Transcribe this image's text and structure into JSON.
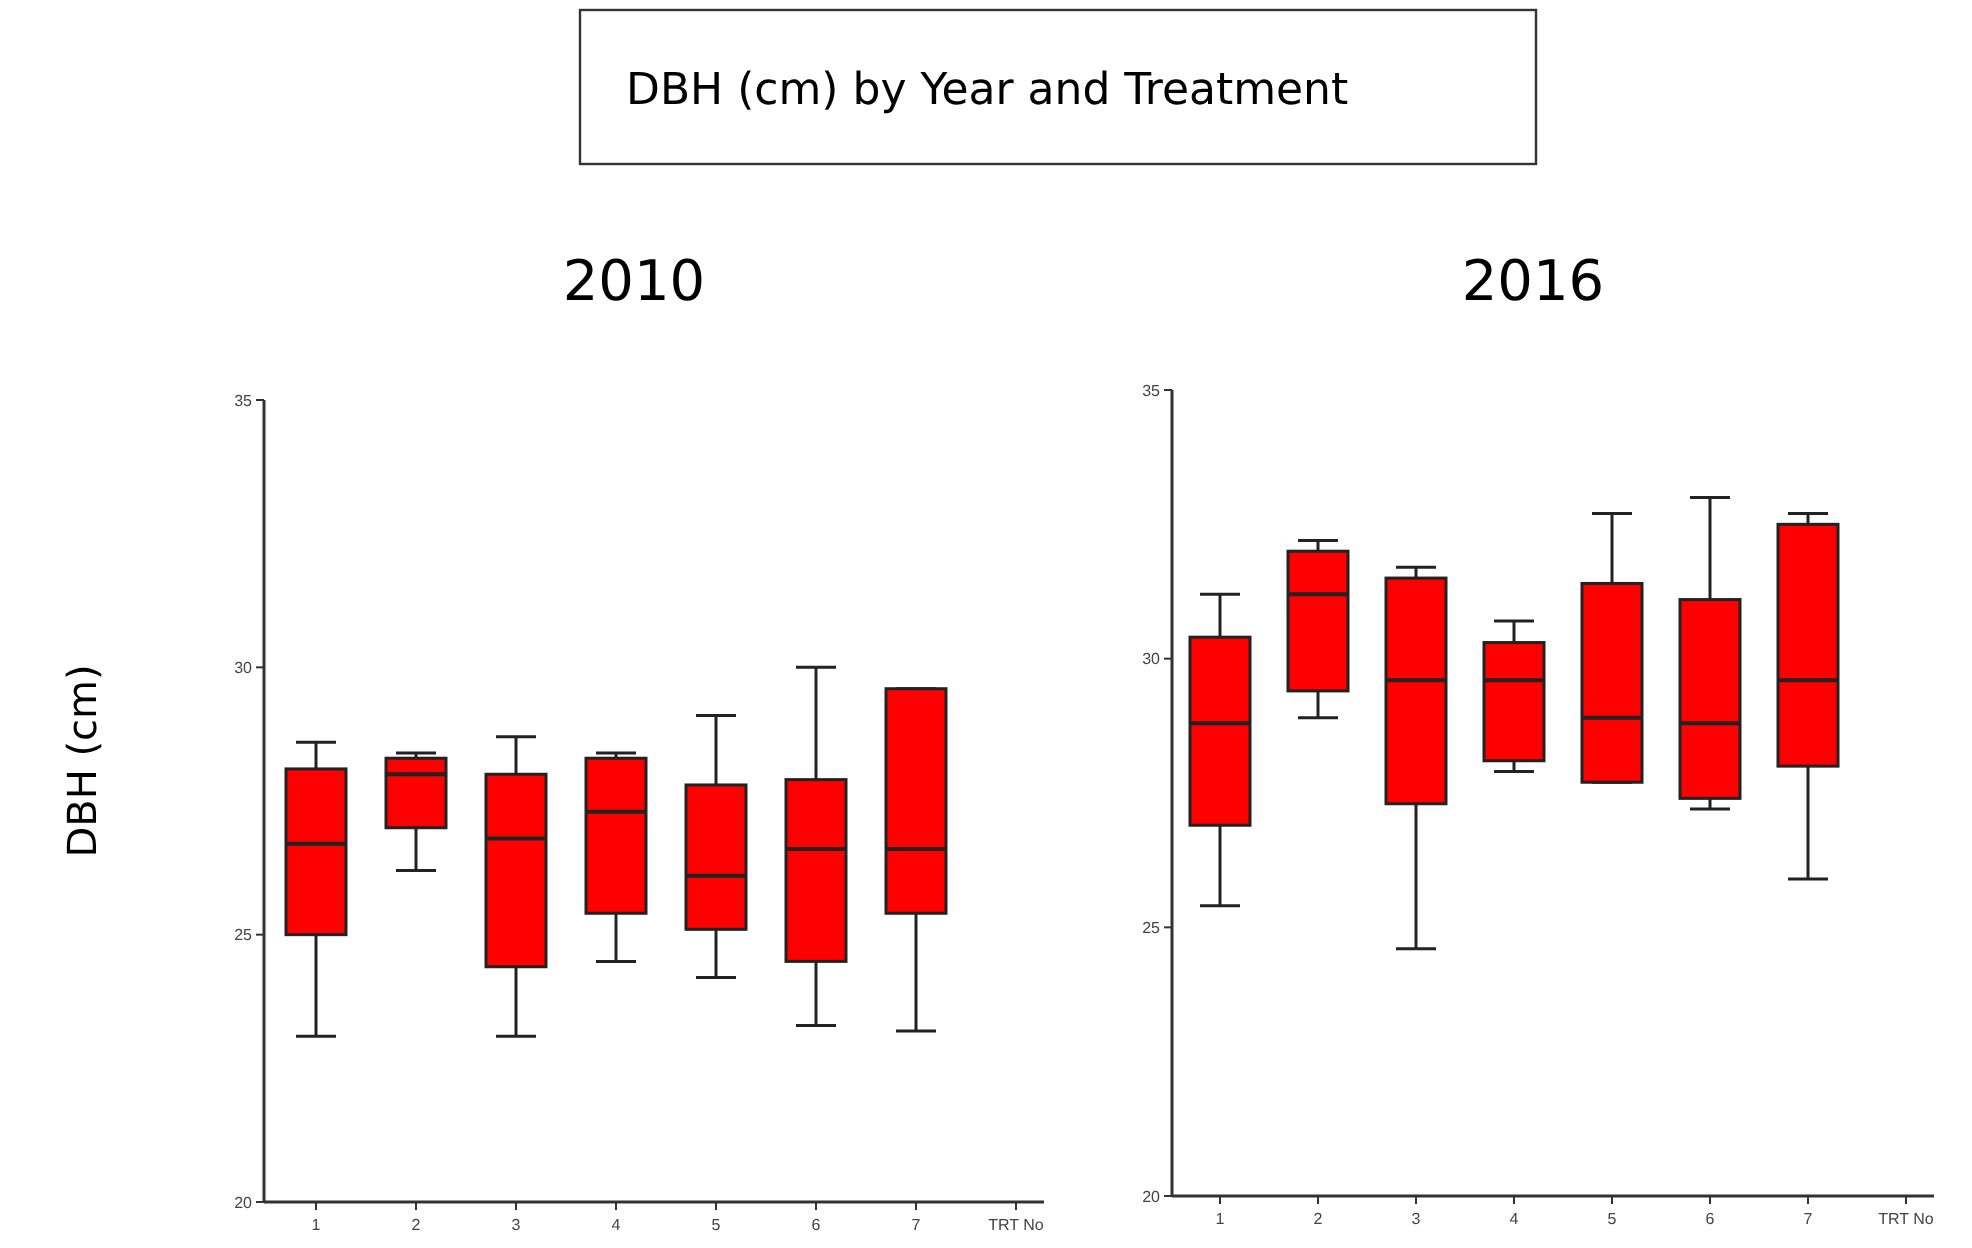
{
  "chart_data": [
    {
      "type": "box",
      "title": "2010",
      "annotations": [
        "DBH (cm) by Year and Treatment"
      ],
      "xlabel": "TRT No",
      "ylabel": "DBH (cm)",
      "categories": [
        "1",
        "2",
        "3",
        "4",
        "5",
        "6",
        "7"
      ],
      "color": "#ff0000",
      "ylim": [
        20,
        35
      ],
      "yticks": [
        20,
        25,
        30,
        35
      ],
      "grid": false,
      "boxes": [
        {
          "low": 23.1,
          "q1": 25.0,
          "median": 26.7,
          "q3": 28.1,
          "high": 28.6
        },
        {
          "low": 26.2,
          "q1": 27.0,
          "median": 28.0,
          "q3": 28.3,
          "high": 28.4
        },
        {
          "low": 23.1,
          "q1": 24.4,
          "median": 26.8,
          "q3": 28.0,
          "high": 28.7
        },
        {
          "low": 24.5,
          "q1": 25.4,
          "median": 27.3,
          "q3": 28.3,
          "high": 28.4
        },
        {
          "low": 24.2,
          "q1": 25.1,
          "median": 26.1,
          "q3": 27.8,
          "high": 29.1
        },
        {
          "low": 23.3,
          "q1": 24.5,
          "median": 26.6,
          "q3": 27.9,
          "high": 30.0
        },
        {
          "low": 23.2,
          "q1": 25.4,
          "median": 26.6,
          "q3": 29.6,
          "high": 29.6
        }
      ]
    },
    {
      "type": "box",
      "title": "2016",
      "xlabel": "TRT No",
      "categories": [
        "1",
        "2",
        "3",
        "4",
        "5",
        "6",
        "7"
      ],
      "color": "#ff0000",
      "ylim": [
        20,
        35
      ],
      "yticks": [
        20,
        25,
        30,
        35
      ],
      "grid": false,
      "boxes": [
        {
          "low": 25.4,
          "q1": 26.9,
          "median": 28.8,
          "q3": 30.4,
          "high": 31.2
        },
        {
          "low": 28.9,
          "q1": 29.4,
          "median": 31.2,
          "q3": 32.0,
          "high": 32.2
        },
        {
          "low": 24.6,
          "q1": 27.3,
          "median": 29.6,
          "q3": 31.5,
          "high": 31.7
        },
        {
          "low": 27.9,
          "q1": 28.1,
          "median": 29.6,
          "q3": 30.3,
          "high": 30.7
        },
        {
          "low": 27.7,
          "q1": 27.7,
          "median": 28.9,
          "q3": 31.4,
          "high": 32.7
        },
        {
          "low": 27.2,
          "q1": 27.4,
          "median": 28.8,
          "q3": 31.1,
          "high": 33.0
        },
        {
          "low": 25.9,
          "q1": 28.0,
          "median": 29.6,
          "q3": 32.5,
          "high": 32.7
        }
      ]
    }
  ]
}
